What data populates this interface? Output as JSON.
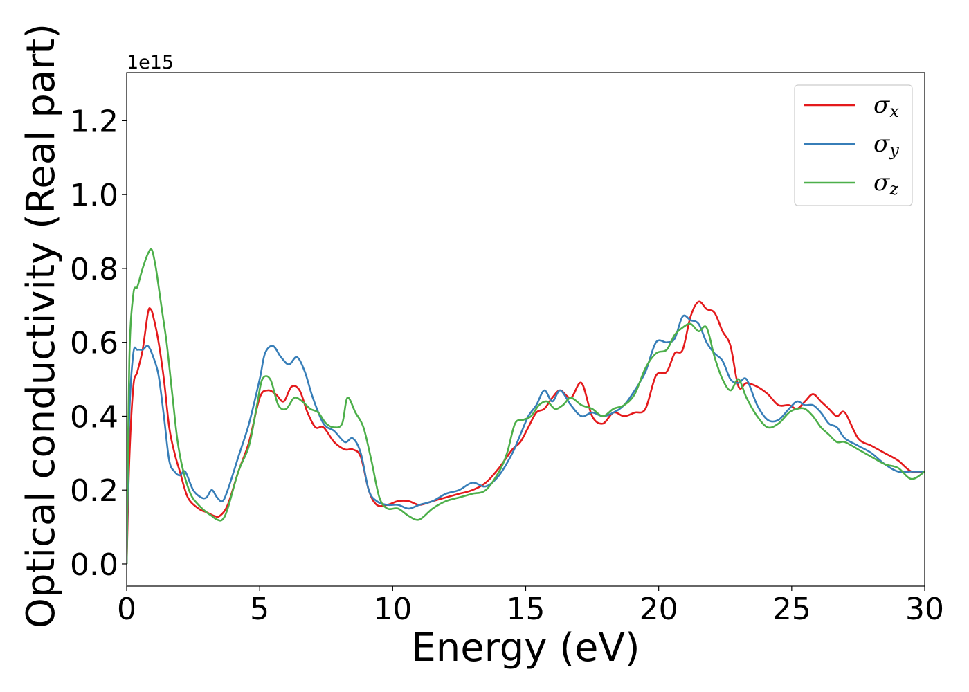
{
  "chart_data": {
    "type": "line",
    "xlabel": "Energy (eV)",
    "ylabel": "Optical conductivity (Real part)",
    "y_offset_label": "1e15",
    "xlim": [
      0,
      30
    ],
    "ylim": [
      -0.06,
      1.33
    ],
    "xticks": [
      0,
      5,
      10,
      15,
      20,
      25,
      30
    ],
    "xtick_labels": [
      "0",
      "5",
      "10",
      "15",
      "20",
      "25",
      "30"
    ],
    "yticks": [
      0.0,
      0.2,
      0.4,
      0.6,
      0.8,
      1.0,
      1.2
    ],
    "ytick_labels": [
      "0.0",
      "0.2",
      "0.4",
      "0.6",
      "0.8",
      "1.0",
      "1.2"
    ],
    "grid": false,
    "legend_position": "top-right",
    "series": [
      {
        "name": "σ",
        "subscript": "x",
        "color": "#e41a1c",
        "x": [
          0,
          0.1,
          0.25,
          0.4,
          0.6,
          0.8,
          0.9,
          1.0,
          1.2,
          1.4,
          1.6,
          1.8,
          2.0,
          2.3,
          2.7,
          3.0,
          3.3,
          3.5,
          3.8,
          4.2,
          4.6,
          5.0,
          5.3,
          5.6,
          5.9,
          6.2,
          6.5,
          6.8,
          7.1,
          7.4,
          7.8,
          8.2,
          8.5,
          8.8,
          9.1,
          9.4,
          9.8,
          10.2,
          10.6,
          11.0,
          11.5,
          12.0,
          12.5,
          13.0,
          13.5,
          14.0,
          14.5,
          14.8,
          15.1,
          15.4,
          15.7,
          16.0,
          16.3,
          16.7,
          17.1,
          17.5,
          17.9,
          18.3,
          18.7,
          19.1,
          19.5,
          19.9,
          20.3,
          20.6,
          20.9,
          21.2,
          21.5,
          21.8,
          22.1,
          22.4,
          22.7,
          23.0,
          23.3,
          23.7,
          24.1,
          24.5,
          24.9,
          25.2,
          25.5,
          25.8,
          26.1,
          26.4,
          26.7,
          27.0,
          27.5,
          28.0,
          28.5,
          29.0,
          29.5,
          30.0
        ],
        "values": [
          0.0,
          0.28,
          0.48,
          0.52,
          0.58,
          0.68,
          0.69,
          0.67,
          0.6,
          0.5,
          0.37,
          0.3,
          0.25,
          0.18,
          0.15,
          0.14,
          0.13,
          0.13,
          0.16,
          0.25,
          0.33,
          0.45,
          0.47,
          0.46,
          0.44,
          0.48,
          0.47,
          0.41,
          0.37,
          0.37,
          0.33,
          0.31,
          0.31,
          0.29,
          0.2,
          0.16,
          0.16,
          0.17,
          0.17,
          0.16,
          0.17,
          0.18,
          0.19,
          0.2,
          0.22,
          0.26,
          0.31,
          0.33,
          0.37,
          0.41,
          0.42,
          0.45,
          0.47,
          0.45,
          0.49,
          0.4,
          0.38,
          0.41,
          0.4,
          0.41,
          0.42,
          0.51,
          0.52,
          0.57,
          0.58,
          0.67,
          0.71,
          0.69,
          0.68,
          0.63,
          0.59,
          0.48,
          0.49,
          0.48,
          0.46,
          0.43,
          0.43,
          0.42,
          0.44,
          0.46,
          0.44,
          0.42,
          0.4,
          0.41,
          0.34,
          0.32,
          0.3,
          0.28,
          0.25,
          0.25
        ]
      },
      {
        "name": "σ",
        "subscript": "y",
        "color": "#377eb8",
        "x": [
          0,
          0.1,
          0.25,
          0.4,
          0.6,
          0.8,
          1.0,
          1.2,
          1.4,
          1.6,
          1.8,
          2.0,
          2.2,
          2.5,
          2.8,
          3.0,
          3.2,
          3.4,
          3.6,
          3.8,
          4.2,
          4.6,
          5.0,
          5.2,
          5.5,
          5.8,
          6.1,
          6.4,
          6.7,
          7.0,
          7.4,
          7.8,
          8.2,
          8.5,
          8.8,
          9.1,
          9.4,
          9.8,
          10.2,
          10.6,
          11.0,
          11.5,
          12.0,
          12.5,
          13.0,
          13.5,
          14.0,
          14.5,
          14.8,
          15.1,
          15.4,
          15.7,
          16.0,
          16.3,
          16.7,
          17.1,
          17.5,
          17.9,
          18.3,
          18.7,
          19.1,
          19.5,
          19.9,
          20.3,
          20.6,
          20.9,
          21.2,
          21.5,
          21.8,
          22.1,
          22.4,
          22.7,
          23.0,
          23.3,
          23.7,
          24.1,
          24.5,
          24.9,
          25.2,
          25.5,
          25.8,
          26.1,
          26.4,
          26.7,
          27.0,
          27.5,
          28.0,
          28.5,
          29.0,
          29.5,
          30.0
        ],
        "values": [
          0.0,
          0.4,
          0.57,
          0.58,
          0.58,
          0.59,
          0.56,
          0.51,
          0.4,
          0.28,
          0.25,
          0.24,
          0.25,
          0.2,
          0.18,
          0.18,
          0.2,
          0.18,
          0.17,
          0.2,
          0.29,
          0.38,
          0.5,
          0.57,
          0.59,
          0.56,
          0.54,
          0.56,
          0.52,
          0.45,
          0.38,
          0.36,
          0.33,
          0.34,
          0.3,
          0.2,
          0.17,
          0.16,
          0.16,
          0.15,
          0.16,
          0.17,
          0.19,
          0.2,
          0.22,
          0.21,
          0.24,
          0.3,
          0.35,
          0.4,
          0.43,
          0.47,
          0.44,
          0.47,
          0.43,
          0.4,
          0.41,
          0.4,
          0.41,
          0.43,
          0.47,
          0.52,
          0.6,
          0.6,
          0.61,
          0.67,
          0.66,
          0.65,
          0.6,
          0.57,
          0.55,
          0.5,
          0.49,
          0.5,
          0.43,
          0.39,
          0.39,
          0.42,
          0.44,
          0.43,
          0.43,
          0.41,
          0.38,
          0.37,
          0.34,
          0.32,
          0.3,
          0.27,
          0.25,
          0.25,
          0.25
        ]
      },
      {
        "name": "σ",
        "subscript": "z",
        "color": "#4daf4a",
        "x": [
          0,
          0.1,
          0.25,
          0.4,
          0.6,
          0.8,
          0.95,
          1.1,
          1.3,
          1.5,
          1.7,
          1.9,
          2.1,
          2.4,
          2.7,
          3.0,
          3.2,
          3.4,
          3.6,
          3.8,
          4.2,
          4.6,
          4.9,
          5.1,
          5.4,
          5.7,
          6.0,
          6.3,
          6.6,
          6.9,
          7.2,
          7.5,
          7.8,
          8.1,
          8.3,
          8.6,
          8.9,
          9.2,
          9.5,
          9.8,
          10.2,
          10.6,
          11.0,
          11.5,
          12.0,
          12.5,
          13.0,
          13.5,
          14.0,
          14.3,
          14.6,
          14.9,
          15.2,
          15.5,
          15.8,
          16.1,
          16.4,
          16.7,
          17.1,
          17.5,
          17.9,
          18.3,
          18.7,
          19.1,
          19.5,
          19.9,
          20.3,
          20.6,
          20.9,
          21.2,
          21.5,
          21.8,
          22.1,
          22.4,
          22.7,
          23.0,
          23.3,
          23.7,
          24.1,
          24.5,
          24.9,
          25.2,
          25.5,
          25.8,
          26.1,
          26.4,
          26.7,
          27.0,
          27.5,
          28.0,
          28.5,
          29.0,
          29.5,
          30.0
        ],
        "values": [
          0.0,
          0.55,
          0.73,
          0.75,
          0.8,
          0.84,
          0.85,
          0.8,
          0.7,
          0.6,
          0.47,
          0.34,
          0.26,
          0.19,
          0.16,
          0.14,
          0.13,
          0.12,
          0.12,
          0.15,
          0.25,
          0.32,
          0.43,
          0.5,
          0.5,
          0.43,
          0.42,
          0.45,
          0.44,
          0.42,
          0.41,
          0.38,
          0.37,
          0.38,
          0.45,
          0.41,
          0.37,
          0.28,
          0.18,
          0.15,
          0.15,
          0.13,
          0.12,
          0.15,
          0.17,
          0.18,
          0.19,
          0.2,
          0.25,
          0.3,
          0.38,
          0.39,
          0.4,
          0.43,
          0.44,
          0.42,
          0.43,
          0.45,
          0.43,
          0.42,
          0.4,
          0.42,
          0.43,
          0.46,
          0.53,
          0.57,
          0.58,
          0.62,
          0.64,
          0.65,
          0.63,
          0.64,
          0.56,
          0.5,
          0.47,
          0.5,
          0.45,
          0.4,
          0.37,
          0.38,
          0.41,
          0.42,
          0.42,
          0.4,
          0.37,
          0.35,
          0.33,
          0.33,
          0.31,
          0.29,
          0.27,
          0.26,
          0.23,
          0.25
        ]
      }
    ]
  }
}
